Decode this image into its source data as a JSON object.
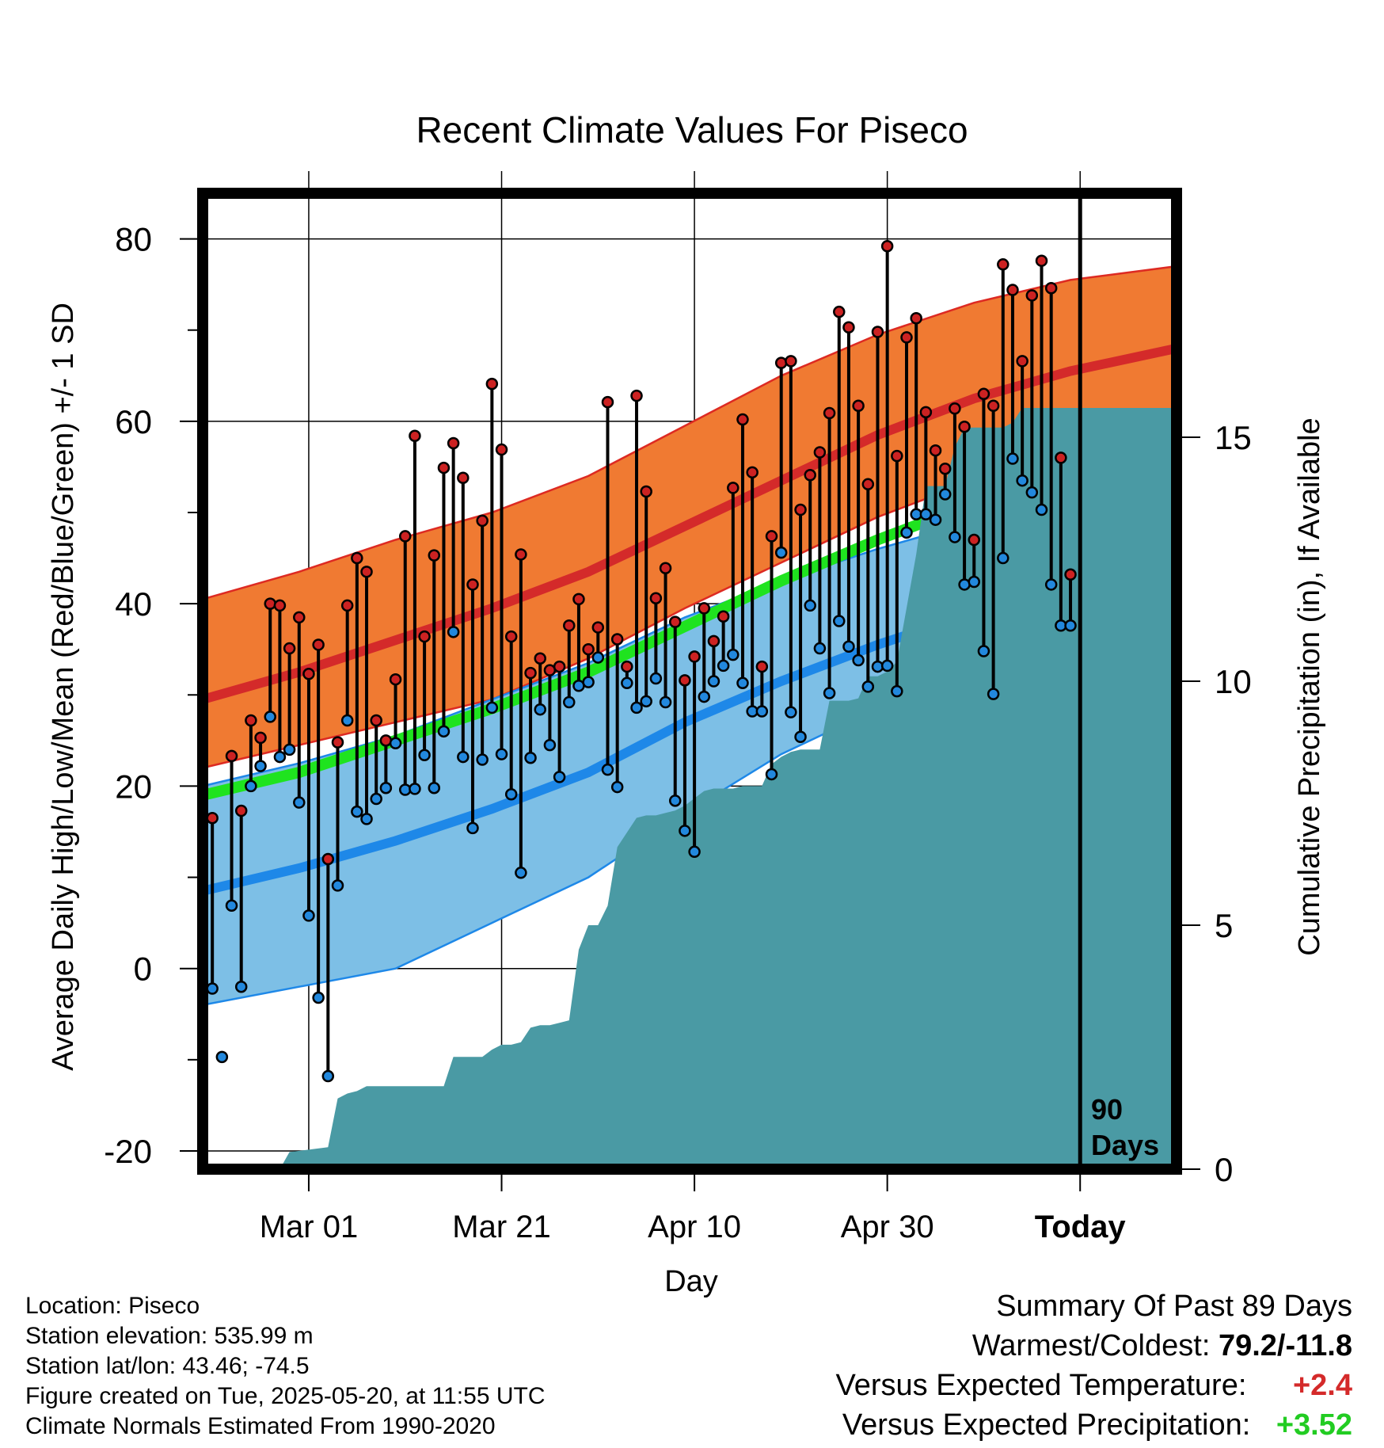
{
  "chart_data": {
    "type": "line",
    "title": "Recent Climate Values For Piseco",
    "xlabel": "Day",
    "ylabel": "Average Daily High/Low/Mean (Red/Blue/Green) +/- 1 SD",
    "y2label": "Cumulative Precipitation (in), If Available",
    "xlim": [
      0,
      101
    ],
    "ylim": [
      -22,
      85
    ],
    "y2lim": [
      0,
      20
    ],
    "yticks": [
      -20,
      0,
      20,
      40,
      60,
      80
    ],
    "yticklabels": [
      "-20",
      "0",
      "20",
      "40",
      "60",
      "80"
    ],
    "y2ticks": [
      0,
      5,
      10,
      15
    ],
    "y2ticklabels": [
      "0",
      "5",
      "10",
      "15"
    ],
    "xticks": [
      11,
      31,
      51,
      71,
      91
    ],
    "xticklabels": [
      "Mar 01",
      "Mar 21",
      "Apr 10",
      "Apr 30",
      "Today"
    ],
    "grid": true,
    "today_marker": {
      "x": 91,
      "label_line1": "90",
      "label_line2": "Days"
    },
    "normals": {
      "x": [
        0,
        10,
        20,
        30,
        40,
        50,
        60,
        70,
        80,
        90,
        101
      ],
      "high_mean": [
        29.5,
        32.5,
        36,
        39.5,
        43.5,
        48.5,
        53.5,
        58.5,
        62.5,
        65.5,
        68
      ],
      "high_upper": [
        40.5,
        43.5,
        47,
        50,
        54,
        59.5,
        65,
        69.5,
        73,
        75.5,
        77
      ],
      "high_lower": [
        22,
        24.5,
        27,
        29.5,
        34,
        39.5,
        44.5,
        49.5,
        53.5,
        57,
        59.5
      ],
      "low_mean": [
        8.5,
        11,
        14,
        17.5,
        21.5,
        27,
        31.5,
        35.5,
        39,
        42.5,
        46
      ],
      "low_upper": [
        20,
        22.5,
        25.5,
        29.5,
        33.5,
        38.5,
        42.5,
        46,
        49,
        51.5,
        53.5
      ],
      "low_lower": [
        -4,
        -2,
        0,
        5,
        10,
        17,
        23.5,
        28.5,
        32.5,
        35.5,
        38.5
      ],
      "mean": [
        19,
        21.5,
        25,
        28.5,
        32.5,
        37.5,
        42.5,
        47,
        51,
        54.5,
        57
      ]
    },
    "series": [
      {
        "name": "High",
        "color": "#cc2222",
        "x": [
          1,
          3,
          4,
          5,
          6,
          7,
          8,
          9,
          10,
          11,
          12,
          13,
          14,
          15,
          16,
          17,
          18,
          19,
          20,
          21,
          22,
          23,
          24,
          25,
          26,
          27,
          28,
          29,
          30,
          31,
          32,
          33,
          34,
          35,
          36,
          37,
          38,
          39,
          40,
          41,
          42,
          43,
          44,
          45,
          46,
          47,
          48,
          49,
          50,
          51,
          52,
          53,
          54,
          55,
          56,
          57,
          58,
          59,
          60,
          61,
          62,
          63,
          64,
          65,
          66,
          67,
          68,
          69,
          70,
          71,
          72,
          73,
          74,
          75,
          76,
          77,
          78,
          79,
          80,
          81,
          82,
          83,
          84,
          85,
          86,
          87,
          88,
          89,
          90
        ],
        "values": [
          16.5,
          23.3,
          17.3,
          27.2,
          25.3,
          40,
          39.8,
          35.1,
          38.5,
          32.3,
          35.5,
          12,
          24.8,
          39.8,
          45,
          43.5,
          27.2,
          25,
          31.7,
          47.4,
          58.4,
          36.4,
          45.3,
          54.9,
          57.6,
          53.8,
          42.1,
          49.1,
          64.1,
          56.9,
          36.4,
          45.4,
          32.4,
          34,
          32.7,
          33.1,
          37.6,
          40.5,
          35,
          37.4,
          62.1,
          36.1,
          33.1,
          62.8,
          52.3,
          40.6,
          43.9,
          38,
          31.6,
          34.2,
          39.5,
          35.9,
          38.6,
          52.7,
          60.2,
          54.4,
          33.1,
          47.4,
          66.4,
          66.6,
          50.3,
          54.1,
          56.6,
          60.9,
          72,
          70.3,
          61.7,
          53.1,
          69.8,
          79.2,
          56.2,
          69.2,
          71.3,
          61,
          56.8,
          54.8,
          61.4,
          59.4,
          47,
          63,
          61.7,
          77.2,
          74.4,
          66.6,
          73.8,
          77.6,
          74.6,
          56,
          43.2
        ]
      },
      {
        "name": "Low",
        "color": "#2288dd",
        "x": [
          1,
          2,
          3,
          4,
          5,
          6,
          7,
          8,
          9,
          10,
          11,
          12,
          13,
          14,
          15,
          16,
          17,
          18,
          19,
          20,
          21,
          22,
          23,
          24,
          25,
          26,
          27,
          28,
          29,
          30,
          31,
          32,
          33,
          34,
          35,
          36,
          37,
          38,
          39,
          40,
          41,
          42,
          43,
          44,
          45,
          46,
          47,
          48,
          49,
          50,
          51,
          52,
          53,
          54,
          55,
          56,
          57,
          58,
          59,
          60,
          61,
          62,
          63,
          64,
          65,
          66,
          67,
          68,
          69,
          70,
          71,
          72,
          73,
          74,
          75,
          76,
          77,
          78,
          79,
          80,
          81,
          82,
          83,
          84,
          85,
          86,
          87,
          88,
          89,
          90
        ],
        "values": [
          -2.2,
          -9.7,
          6.9,
          -2,
          20,
          22.2,
          27.6,
          23.2,
          24,
          18.2,
          5.8,
          -3.2,
          -11.8,
          9.1,
          27.2,
          17.2,
          16.4,
          18.6,
          19.8,
          24.7,
          19.6,
          19.7,
          23.4,
          19.8,
          26,
          36.9,
          23.2,
          15.4,
          22.9,
          28.6,
          23.5,
          19.1,
          10.5,
          23.1,
          28.4,
          24.5,
          21,
          29.2,
          31,
          31.4,
          34.1,
          21.8,
          19.9,
          31.3,
          28.6,
          29.3,
          31.8,
          29.2,
          18.4,
          15.1,
          12.8,
          29.8,
          31.5,
          33.2,
          34.4,
          31.3,
          28.2,
          28.2,
          21.3,
          45.6,
          28.1,
          25.4,
          39.8,
          35.1,
          30.2,
          38.1,
          35.3,
          33.8,
          30.9,
          33.1,
          33.2,
          30.4,
          47.8,
          49.8,
          49.8,
          49.2,
          52,
          47.3,
          42.1,
          42.4,
          34.8,
          30.1,
          45,
          55.9,
          53.5,
          52.2,
          50.3,
          42.1,
          37.6,
          37.6
        ]
      },
      {
        "name": "Cumulative Precipitation",
        "color": "#4a9aa4",
        "axis": "right",
        "x": [
          0,
          8,
          9,
          13,
          14,
          15,
          16,
          17,
          18,
          19,
          20,
          21,
          22,
          23,
          24,
          25,
          26,
          27,
          28,
          29,
          30,
          31,
          32,
          33,
          34,
          35,
          36,
          37,
          38,
          39,
          40,
          41,
          42,
          43,
          44,
          45,
          46,
          47,
          48,
          49,
          50,
          51,
          52,
          53,
          54,
          55,
          56,
          57,
          58,
          59,
          60,
          61,
          62,
          63,
          64,
          65,
          66,
          67,
          68,
          69,
          70,
          71,
          72,
          73,
          74,
          75,
          76,
          77,
          78,
          79,
          80,
          81,
          82,
          83,
          84,
          85,
          86,
          87,
          88,
          89,
          90,
          101
        ],
        "values": [
          0,
          0,
          0.35,
          0.45,
          1.45,
          1.55,
          1.6,
          1.7,
          1.7,
          1.7,
          1.7,
          1.7,
          1.7,
          1.7,
          1.7,
          1.7,
          2.3,
          2.3,
          2.3,
          2.3,
          2.45,
          2.55,
          2.55,
          2.6,
          2.9,
          2.95,
          2.95,
          3,
          3.05,
          4.5,
          5,
          5,
          5.4,
          6.6,
          6.9,
          7.2,
          7.25,
          7.25,
          7.3,
          7.35,
          7.45,
          7.6,
          7.75,
          7.8,
          7.8,
          7.8,
          7.85,
          7.85,
          7.85,
          8.3,
          8.45,
          8.55,
          8.6,
          8.6,
          8.6,
          9.6,
          9.6,
          9.6,
          9.65,
          10.1,
          10.1,
          10.2,
          10.4,
          11.5,
          12.6,
          14.0,
          14.0,
          14.0,
          14.8,
          15.2,
          15.2,
          15.2,
          15.2,
          15.2,
          15.3,
          15.6,
          15.6,
          15.6,
          15.6,
          15.6,
          15.6,
          15.6
        ]
      }
    ]
  },
  "info": {
    "location": "Location: Piseco",
    "elevation": "Station elevation: 535.99 m",
    "latlon": "Station lat/lon: 43.46; -74.5",
    "created": "Figure created on Tue, 2025-05-20, at 11:55 UTC",
    "normals": "Climate Normals Estimated From 1990-2020"
  },
  "summary": {
    "heading": "Summary Of Past 89 Days",
    "warm_cold_label": "Warmest/Coldest:",
    "warm_cold_value": "79.2/-11.8",
    "temp_label": "Versus Expected Temperature:",
    "temp_value": "+2.4",
    "precip_label": "Versus Expected Precipitation:",
    "precip_value": "+3.52"
  }
}
